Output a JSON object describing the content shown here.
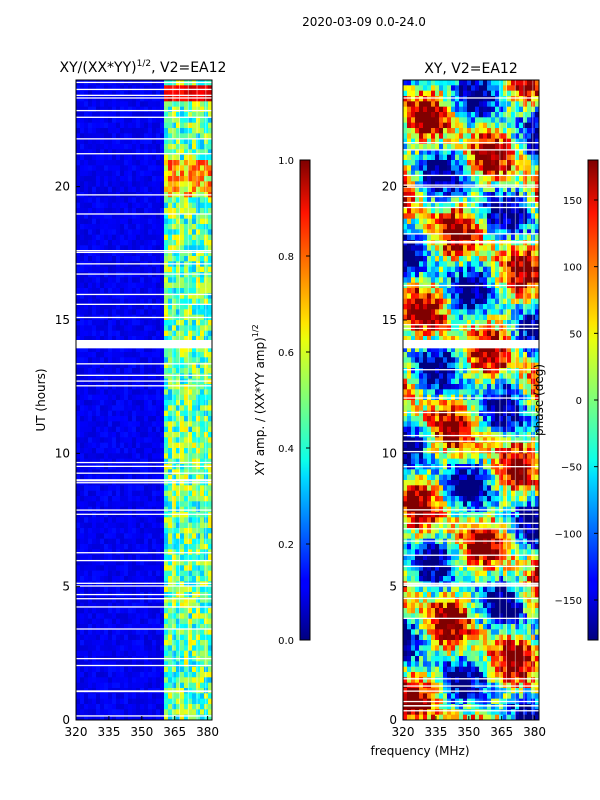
{
  "figure_title": "2020-03-09 0.0-24.0",
  "shared_xlabel": "frequency (MHz)",
  "chart_data": [
    {
      "type": "heatmap",
      "title": "XY/(XX*YY)^{1/2}, V2=EA12",
      "title_main": "XY/(XX*YY)",
      "title_exp": "1/2",
      "title_tail": ", V2=EA12",
      "xlabel": "frequency (MHz)",
      "ylabel": "UT (hours)",
      "xlim": [
        320,
        382
      ],
      "ylim": [
        0,
        24
      ],
      "xticks": [
        320,
        335,
        350,
        365,
        380
      ],
      "yticks": [
        0,
        5,
        10,
        15,
        20
      ],
      "colorbar": {
        "label": "XY amp. / (XX*YY amp)^{1/2}",
        "label_main": "XY amp. / (XX*YY amp)",
        "label_exp": "1/2",
        "range": [
          0.0,
          1.0
        ],
        "ticks": [
          "0.0",
          "0.2",
          "0.4",
          "0.6",
          "0.8",
          "1.0"
        ],
        "colormap": "jet"
      },
      "bright_band_mhz": [
        361,
        382
      ],
      "gap_rows_hours": [
        14.05,
        14.15,
        14.25,
        5.05,
        5.15,
        23.35,
        19.0
      ]
    },
    {
      "type": "heatmap",
      "title": "XY, V2=EA12",
      "xlabel": "frequency (MHz)",
      "ylabel": "",
      "xlim": [
        320,
        382
      ],
      "ylim": [
        0,
        24
      ],
      "xticks": [
        320,
        335,
        350,
        365,
        380
      ],
      "yticks": [
        0,
        5,
        10,
        15,
        20
      ],
      "colorbar": {
        "label": "phase (deg)",
        "range": [
          -180,
          180
        ],
        "ticks": [
          "-150",
          "-100",
          "-50",
          "0",
          "50",
          "100",
          "150"
        ],
        "colormap": "jet"
      },
      "gap_rows_hours": [
        14.05,
        14.15,
        14.25,
        5.05,
        5.15,
        23.35
      ]
    }
  ]
}
